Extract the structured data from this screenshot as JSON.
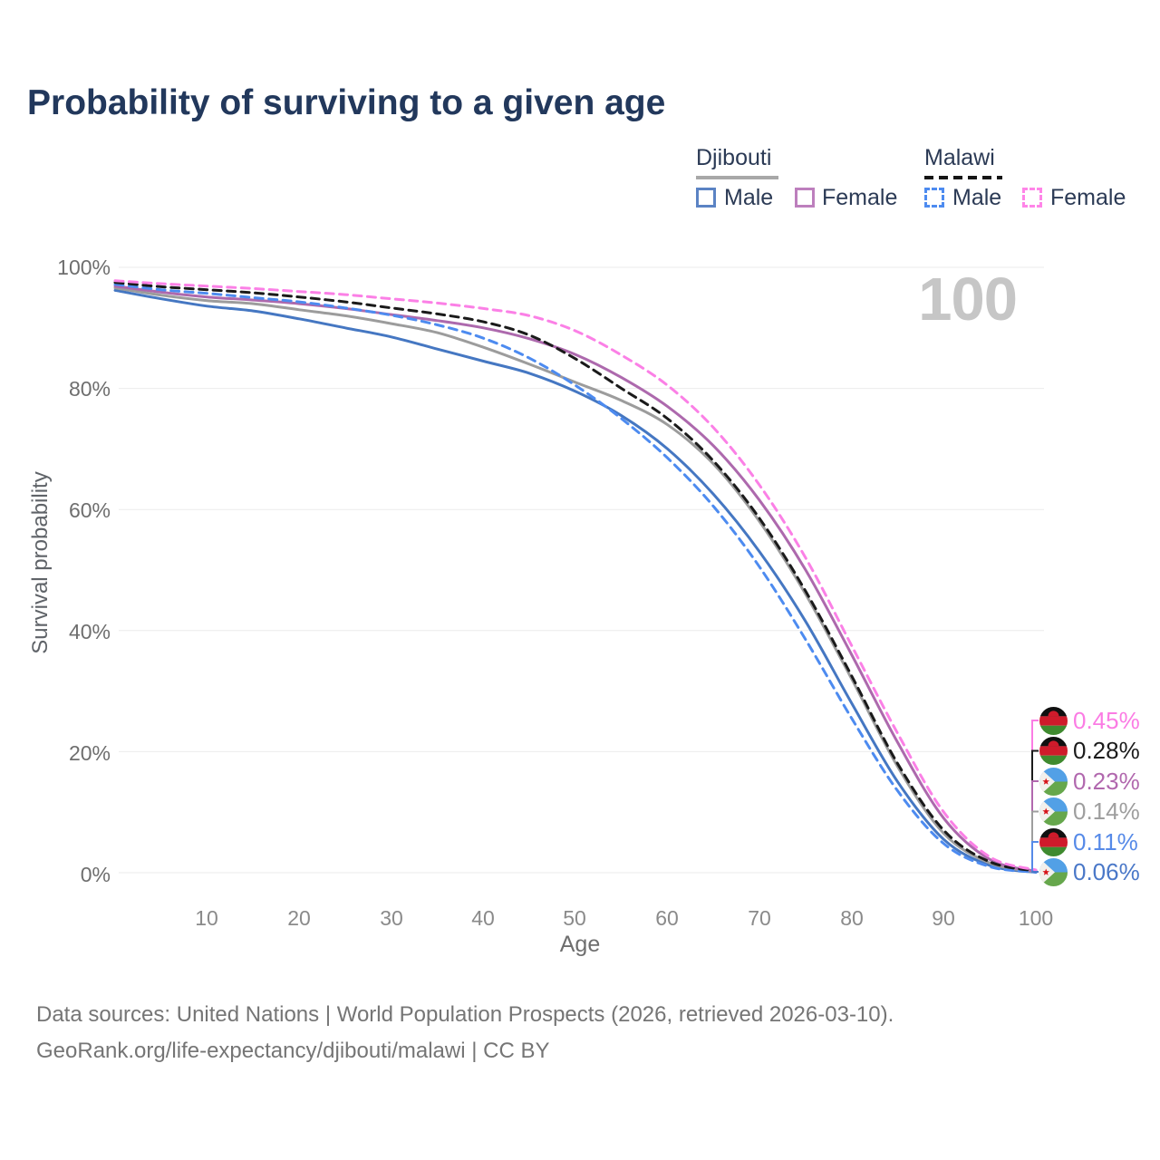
{
  "title": "Probability of surviving to a given age",
  "legend": {
    "groups": [
      {
        "label": "Djibouti",
        "line_style": "solid",
        "rule_color": "#a8a8a8",
        "items": [
          {
            "label": "Male",
            "color": "#5b83c4",
            "dash": false
          },
          {
            "label": "Female",
            "color": "#bd7fbd",
            "dash": false
          }
        ]
      },
      {
        "label": "Malawi",
        "line_style": "dashed",
        "rule_color": "#151515",
        "items": [
          {
            "label": "Male",
            "color": "#4d8bf0",
            "dash": true
          },
          {
            "label": "Female",
            "color": "#ff85e8",
            "dash": true
          }
        ]
      }
    ]
  },
  "watermark": "100",
  "y_axis": {
    "label": "Survival probability",
    "ticks": [
      "100%",
      "80%",
      "60%",
      "40%",
      "20%",
      "0%"
    ],
    "tick_values": [
      100,
      80,
      60,
      40,
      20,
      0
    ]
  },
  "x_axis": {
    "label": "Age",
    "ticks": [
      "10",
      "20",
      "30",
      "40",
      "50",
      "60",
      "70",
      "80",
      "90",
      "100"
    ],
    "tick_values": [
      10,
      20,
      30,
      40,
      50,
      60,
      70,
      80,
      90,
      100
    ]
  },
  "end_labels": [
    {
      "flag": "malawi",
      "series": "Malawi Female",
      "value": "0.45%",
      "color": "#fb7ce4"
    },
    {
      "flag": "malawi",
      "series": "Malawi",
      "value": "0.28%",
      "color": "#1b1b1b"
    },
    {
      "flag": "djibouti",
      "series": "Djibouti Female",
      "value": "0.23%",
      "color": "#b168ae"
    },
    {
      "flag": "djibouti",
      "series": "Djibouti",
      "value": "0.14%",
      "color": "#9e9e9e"
    },
    {
      "flag": "malawi",
      "series": "Malawi Male",
      "value": "0.11%",
      "color": "#568ae8"
    },
    {
      "flag": "djibouti",
      "series": "Djibouti Male",
      "value": "0.06%",
      "color": "#4a78c8"
    }
  ],
  "sources": {
    "line1": "Data sources: United Nations | World Population Prospects (2026, retrieved 2026-03-10).",
    "line2": "GeoRank.org/life-expectancy/djibouti/malawi | CC BY"
  },
  "chart_data": {
    "type": "line",
    "title": "Probability of surviving to a given age",
    "xlabel": "Age",
    "ylabel": "Survival probability",
    "x_range": [
      0,
      100
    ],
    "ylim_percent": [
      0,
      100
    ],
    "grid": "horizontal",
    "legend_position": "top-right",
    "ages": [
      0,
      5,
      10,
      15,
      20,
      25,
      30,
      35,
      40,
      45,
      50,
      55,
      60,
      65,
      70,
      75,
      80,
      85,
      90,
      95,
      100
    ],
    "series": [
      {
        "name": "Djibouti Male",
        "country": "Djibouti",
        "sex": "male",
        "color": "#4577c2",
        "dash": false,
        "values": [
          96.2,
          94.8,
          93.6,
          92.8,
          91.5,
          90.0,
          88.5,
          86.5,
          84.5,
          82.5,
          79.5,
          75.5,
          70.0,
          62.5,
          53.0,
          41.5,
          28.0,
          15.0,
          5.5,
          1.2,
          0.06
        ]
      },
      {
        "name": "Djibouti",
        "country": "Djibouti",
        "sex": "both",
        "color": "#9c9c9c",
        "dash": false,
        "values": [
          96.6,
          95.4,
          94.5,
          94.0,
          93.0,
          92.0,
          90.7,
          89.2,
          86.8,
          84.0,
          81.0,
          78.0,
          74.0,
          67.5,
          58.0,
          46.0,
          32.0,
          17.5,
          6.5,
          1.6,
          0.14
        ]
      },
      {
        "name": "Djibouti Female",
        "country": "Djibouti",
        "sex": "female",
        "color": "#ad69ad",
        "dash": false,
        "values": [
          96.9,
          95.9,
          95.1,
          94.6,
          94.0,
          93.2,
          92.2,
          91.2,
          90.0,
          88.2,
          85.6,
          81.8,
          77.0,
          70.5,
          61.5,
          50.0,
          36.0,
          21.5,
          9.0,
          2.2,
          0.23
        ]
      },
      {
        "name": "Malawi Male",
        "country": "Malawi",
        "sex": "male",
        "color": "#4d8bf0",
        "dash": true,
        "values": [
          97.2,
          96.3,
          95.7,
          95.0,
          94.3,
          93.3,
          92.1,
          90.5,
          88.3,
          85.0,
          80.5,
          75.0,
          68.5,
          60.5,
          50.5,
          38.5,
          25.5,
          13.5,
          4.8,
          1.0,
          0.11
        ]
      },
      {
        "name": "Malawi",
        "country": "Malawi",
        "sex": "both",
        "color": "#1a1a1a",
        "dash": true,
        "values": [
          97.5,
          96.8,
          96.3,
          95.8,
          95.1,
          94.3,
          93.3,
          92.3,
          91.0,
          88.8,
          84.9,
          80.0,
          75.0,
          68.0,
          58.5,
          46.5,
          32.5,
          18.0,
          7.0,
          1.8,
          0.28
        ]
      },
      {
        "name": "Malawi Female",
        "country": "Malawi",
        "sex": "female",
        "color": "#fb80e6",
        "dash": true,
        "values": [
          97.8,
          97.3,
          96.9,
          96.5,
          96.0,
          95.5,
          94.8,
          94.1,
          93.2,
          92.0,
          89.5,
          85.5,
          80.5,
          73.5,
          64.0,
          52.0,
          37.5,
          23.0,
          10.0,
          2.6,
          0.45
        ]
      }
    ],
    "end_values_percent": {
      "Malawi Female": 0.45,
      "Malawi": 0.28,
      "Djibouti Female": 0.23,
      "Djibouti": 0.14,
      "Malawi Male": 0.11,
      "Djibouti Male": 0.06
    }
  }
}
